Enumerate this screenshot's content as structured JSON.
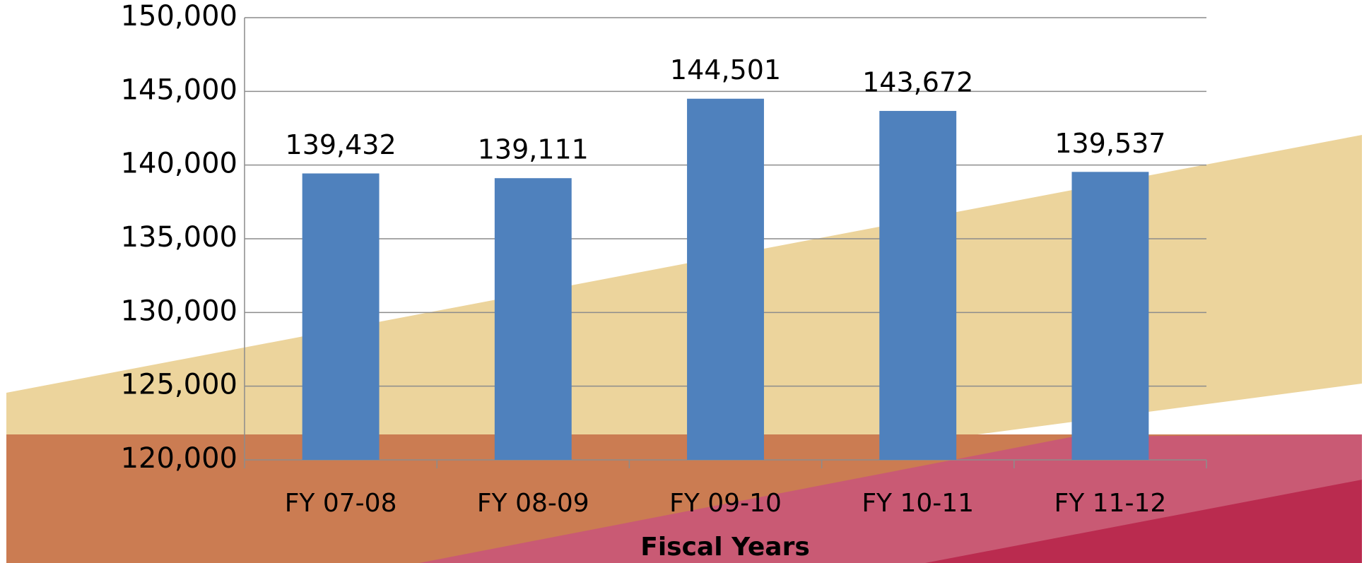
{
  "chart_data": {
    "type": "bar",
    "x_axis_label": "Fiscal  Years",
    "categories": [
      "FY 07-08",
      "FY 08-09",
      "FY 09-10",
      "FY 10-11",
      "FY 11-12"
    ],
    "values": [
      139432,
      139111,
      144501,
      143672,
      139537
    ],
    "value_labels": [
      "139,432",
      "139,111",
      "144,501",
      "143,672",
      "139,537"
    ],
    "color": "#4f81bd",
    "ylim": [
      120000,
      150000
    ],
    "yticks": [
      {
        "value": 120000,
        "label": "120,000"
      },
      {
        "value": 125000,
        "label": "125,000"
      },
      {
        "value": 130000,
        "label": "130,000"
      },
      {
        "value": 135000,
        "label": "135,000"
      },
      {
        "value": 140000,
        "label": "140,000"
      },
      {
        "value": 145000,
        "label": "145,000"
      },
      {
        "value": 150000,
        "label": "150,000"
      }
    ],
    "grid": true
  }
}
